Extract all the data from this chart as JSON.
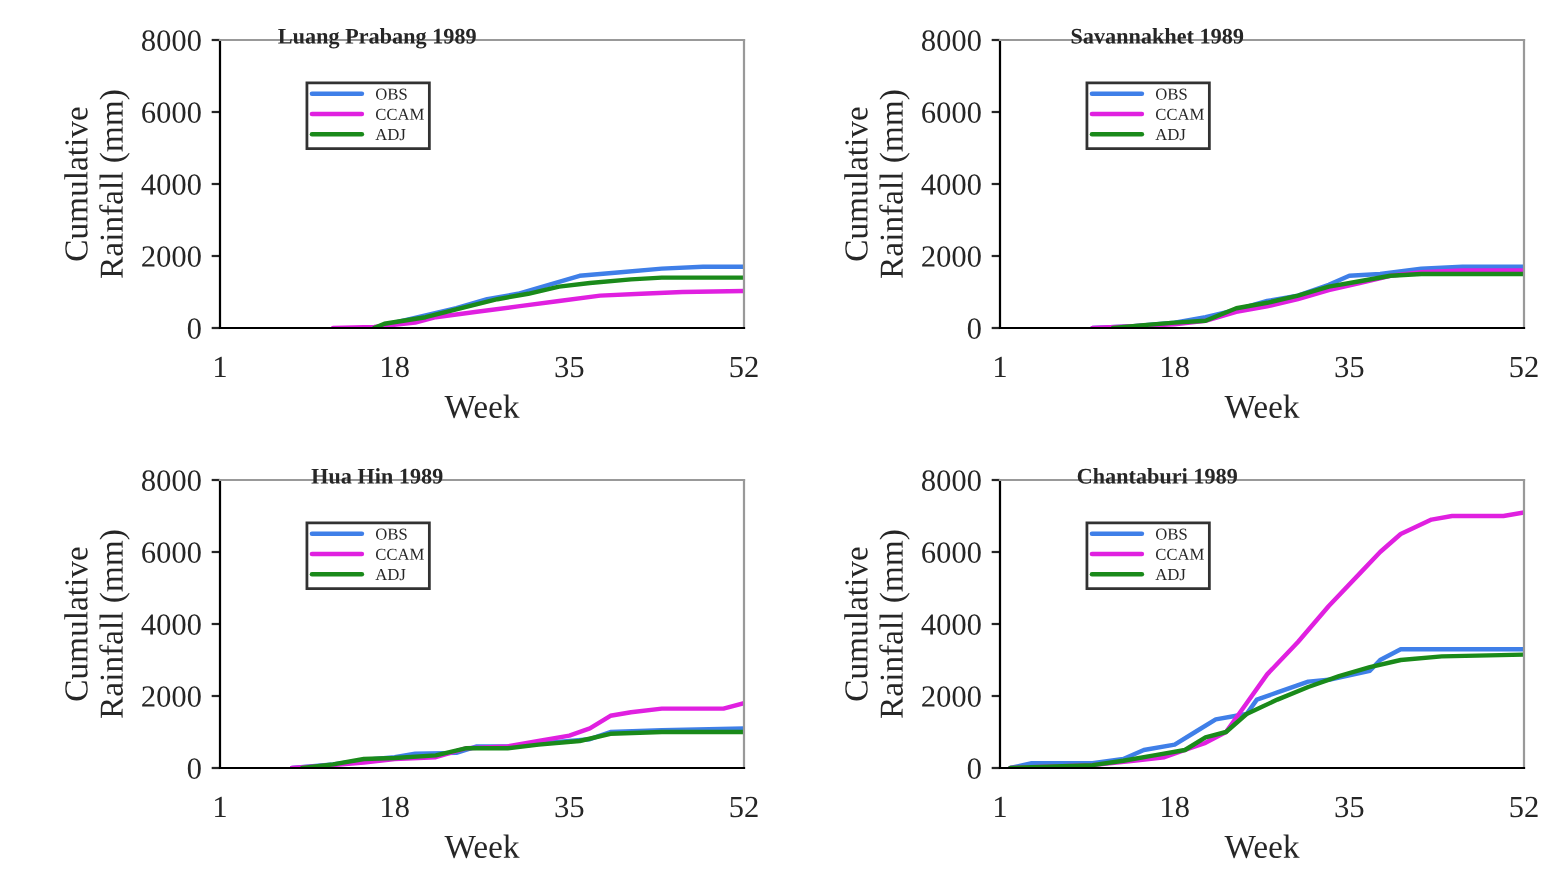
{
  "chart_data": [
    {
      "type": "line",
      "title": "Luang Prabang 1989",
      "xlabel": "Week",
      "ylabel": "Cumulative\nRainfall (mm)",
      "xlim": [
        1,
        52
      ],
      "xticks": [
        1,
        18,
        35,
        52
      ],
      "ylim": [
        0,
        8000
      ],
      "yticks": [
        0,
        2000,
        4000,
        6000,
        8000
      ],
      "legend": "top left",
      "grid": false,
      "series": [
        {
          "name": "OBS",
          "color": "#3f7fe8",
          "x": [
            16,
            18,
            21,
            24,
            27,
            30,
            33,
            36,
            40,
            44,
            48,
            52
          ],
          "values": [
            0,
            150,
            350,
            550,
            800,
            950,
            1200,
            1450,
            1550,
            1650,
            1700,
            1700
          ]
        },
        {
          "name": "CCAM",
          "color": "#e020e0",
          "x": [
            12,
            16,
            20,
            22,
            26,
            30,
            34,
            38,
            42,
            46,
            52
          ],
          "values": [
            0,
            30,
            150,
            300,
            450,
            600,
            750,
            900,
            950,
            1000,
            1030
          ]
        },
        {
          "name": "ADJ",
          "color": "#1a8a1a",
          "x": [
            16,
            17,
            21,
            24,
            28,
            31,
            34,
            37,
            41,
            44,
            52
          ],
          "values": [
            0,
            120,
            300,
            520,
            800,
            950,
            1150,
            1250,
            1350,
            1400,
            1400
          ]
        }
      ]
    },
    {
      "type": "line",
      "title": "Savannakhet 1989",
      "xlabel": "Week",
      "ylabel": "Cumulative\nRainfall (mm)",
      "xlim": [
        1,
        52
      ],
      "xticks": [
        1,
        18,
        35,
        52
      ],
      "ylim": [
        0,
        8000
      ],
      "yticks": [
        0,
        2000,
        4000,
        6000,
        8000
      ],
      "legend": "top left",
      "grid": false,
      "series": [
        {
          "name": "OBS",
          "color": "#3f7fe8",
          "x": [
            10,
            14,
            18,
            21,
            24,
            27,
            30,
            33,
            35,
            38,
            42,
            46,
            52
          ],
          "values": [
            0,
            50,
            150,
            300,
            500,
            750,
            900,
            1200,
            1450,
            1500,
            1650,
            1700,
            1700
          ]
        },
        {
          "name": "CCAM",
          "color": "#e020e0",
          "x": [
            10,
            18,
            21,
            24,
            27,
            30,
            33,
            36,
            39,
            42,
            46,
            52
          ],
          "values": [
            0,
            100,
            200,
            450,
            600,
            800,
            1050,
            1250,
            1450,
            1550,
            1600,
            1600
          ]
        },
        {
          "name": "ADJ",
          "color": "#1a8a1a",
          "x": [
            12,
            15,
            18,
            21,
            24,
            27,
            30,
            33,
            36,
            39,
            42,
            52
          ],
          "values": [
            0,
            80,
            150,
            200,
            550,
            700,
            900,
            1150,
            1300,
            1450,
            1500,
            1500
          ]
        }
      ]
    },
    {
      "type": "line",
      "title": "Hua Hin 1989",
      "xlabel": "Week",
      "ylabel": "Cumulative\nRainfall (mm)",
      "xlim": [
        1,
        52
      ],
      "xticks": [
        1,
        18,
        35,
        52
      ],
      "ylim": [
        0,
        8000
      ],
      "yticks": [
        0,
        2000,
        4000,
        6000,
        8000
      ],
      "legend": "top left",
      "grid": false,
      "series": [
        {
          "name": "OBS",
          "color": "#3f7fe8",
          "x": [
            8,
            12,
            15,
            18,
            20,
            24,
            26,
            30,
            33,
            37,
            39,
            44,
            52
          ],
          "values": [
            0,
            100,
            220,
            300,
            400,
            420,
            600,
            600,
            700,
            800,
            1000,
            1050,
            1100
          ]
        },
        {
          "name": "CCAM",
          "color": "#e020e0",
          "x": [
            8,
            12,
            15,
            18,
            22,
            25,
            29,
            32,
            35,
            37,
            39,
            41,
            44,
            50,
            52
          ],
          "values": [
            0,
            80,
            150,
            250,
            300,
            550,
            600,
            750,
            900,
            1100,
            1450,
            1550,
            1650,
            1650,
            1800
          ]
        },
        {
          "name": "ADJ",
          "color": "#1a8a1a",
          "x": [
            9,
            12,
            15,
            18,
            22,
            25,
            29,
            32,
            36,
            39,
            44,
            52
          ],
          "values": [
            0,
            100,
            250,
            280,
            350,
            550,
            550,
            650,
            750,
            950,
            1000,
            1000
          ]
        }
      ]
    },
    {
      "type": "line",
      "title": "Chantaburi 1989",
      "xlabel": "Week",
      "ylabel": "Cumulative\nRainfall (mm)",
      "xlim": [
        1,
        52
      ],
      "xticks": [
        1,
        18,
        35,
        52
      ],
      "ylim": [
        0,
        8000
      ],
      "yticks": [
        0,
        2000,
        4000,
        6000,
        8000
      ],
      "legend": "top left",
      "grid": false,
      "series": [
        {
          "name": "OBS",
          "color": "#3f7fe8",
          "x": [
            2,
            4,
            10,
            13,
            15,
            18,
            20,
            22,
            24,
            25,
            26,
            28,
            31,
            33,
            37,
            38,
            40,
            52
          ],
          "values": [
            0,
            130,
            130,
            250,
            500,
            650,
            1000,
            1350,
            1450,
            1500,
            1900,
            2100,
            2400,
            2450,
            2700,
            3000,
            3300,
            3300
          ]
        },
        {
          "name": "CCAM",
          "color": "#e020e0",
          "x": [
            2,
            10,
            14,
            17,
            19,
            21,
            23,
            25,
            27,
            30,
            33,
            36,
            38,
            40,
            43,
            45,
            50,
            52
          ],
          "values": [
            0,
            80,
            200,
            300,
            500,
            700,
            1000,
            1800,
            2600,
            3500,
            4500,
            5400,
            6000,
            6500,
            6900,
            7000,
            7000,
            7100
          ]
        },
        {
          "name": "ADJ",
          "color": "#1a8a1a",
          "x": [
            2,
            10,
            13,
            16,
            19,
            21,
            23,
            25,
            28,
            31,
            34,
            37,
            40,
            44,
            52
          ],
          "values": [
            0,
            80,
            200,
            350,
            500,
            850,
            1000,
            1500,
            1900,
            2250,
            2550,
            2800,
            3000,
            3100,
            3150
          ]
        }
      ]
    }
  ]
}
